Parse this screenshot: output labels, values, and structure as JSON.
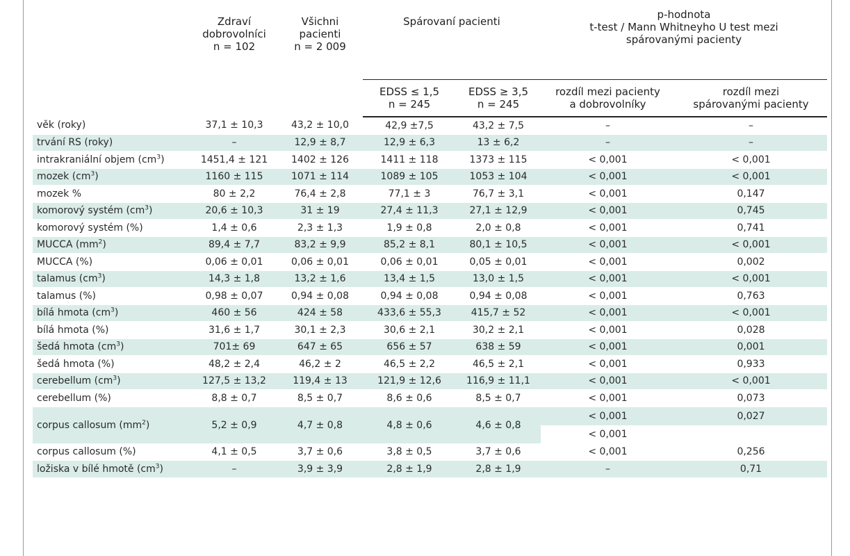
{
  "header": {
    "col_healthy": [
      "Zdraví",
      "dobrovolníci",
      "n = 102"
    ],
    "col_all": [
      "Všichni",
      "pacienti",
      "n = 2 009"
    ],
    "col_paired": "Spárovaní pacienti",
    "col_pvalue": [
      "p-hodnota",
      "t-test / Mann Whitneyho U test mezi",
      "spárovanými pacienty"
    ],
    "sub_edss_low": [
      "EDSS ≤ 1,5",
      "n = 245"
    ],
    "sub_edss_high": [
      "EDSS ≥ 3,5",
      "n = 245"
    ],
    "sub_diff_pat_vol": [
      "rozdíl mezi pacienty",
      "a dobrovolníky"
    ],
    "sub_diff_paired": [
      "rozdíl mezi",
      "spárovanými pacienty"
    ]
  },
  "rows": [
    {
      "label": "věk (roky)",
      "sup": "",
      "healthy": "37,1 ± 10,3",
      "all": "43,2 ± 10,0",
      "low": "42,9 ±7,5",
      "high": "43,2 ± 7,5",
      "p1": "–",
      "p2": "–"
    },
    {
      "label": "trvání RS (roky)",
      "sup": "",
      "healthy": "–",
      "all": "12,9 ± 8,7",
      "low": "12,9 ± 6,3",
      "high": "13 ± 6,2",
      "p1": "–",
      "p2": "–"
    },
    {
      "label": "intrakraniální objem (cm",
      "sup": "3",
      "tail": ")",
      "healthy": "1451,4 ± 121",
      "all": "1402 ± 126",
      "low": "1411 ± 118",
      "high": "1373 ± 115",
      "p1": "< 0,001",
      "p2": "< 0,001"
    },
    {
      "label": "mozek (cm",
      "sup": "3",
      "tail": ")",
      "healthy": "1160 ± 115",
      "all": "1071 ± 114",
      "low": "1089 ± 105",
      "high": "1053 ± 104",
      "p1": "< 0,001",
      "p2": "< 0,001"
    },
    {
      "label": "mozek %",
      "sup": "",
      "healthy": "80 ± 2,2",
      "all": "76,4 ± 2,8",
      "low": "77,1 ± 3",
      "high": "76,7 ± 3,1",
      "p1": "< 0,001",
      "p2": "0,147"
    },
    {
      "label": "komorový systém (cm",
      "sup": "3",
      "tail": ")",
      "healthy": "20,6 ± 10,3",
      "all": "31 ± 19",
      "low": "27,4 ± 11,3",
      "high": "27,1 ± 12,9",
      "p1": "< 0,001",
      "p2": "0,745"
    },
    {
      "label": "komorový systém (%)",
      "sup": "",
      "healthy": "1,4 ± 0,6",
      "all": "2,3 ± 1,3",
      "low": "1,9 ± 0,8",
      "high": "2,0 ± 0,8",
      "p1": "< 0,001",
      "p2": "0,741"
    },
    {
      "label": "MUCCA (mm",
      "sup": "2",
      "tail": ")",
      "healthy": "89,4 ± 7,7",
      "all": "83,2 ± 9,9",
      "low": "85,2 ± 8,1",
      "high": "80,1 ± 10,5",
      "p1": "< 0,001",
      "p2": "< 0,001"
    },
    {
      "label": "MUCCA (%)",
      "sup": "",
      "healthy": "0,06 ± 0,01",
      "all": "0,06 ± 0,01",
      "low": "0,06 ± 0,01",
      "high": "0,05 ± 0,01",
      "p1": "< 0,001",
      "p2": "0,002"
    },
    {
      "label": "talamus (cm",
      "sup": "3",
      "tail": ")",
      "healthy": "14,3 ± 1,8",
      "all": "13,2 ± 1,6",
      "low": "13,4 ± 1,5",
      "high": "13,0 ± 1,5",
      "p1": "< 0,001",
      "p2": "< 0,001"
    },
    {
      "label": "talamus (%)",
      "sup": "",
      "healthy": "0,98 ± 0,07",
      "all": "0,94 ± 0,08",
      "low": "0,94 ± 0,08",
      "high": "0,94 ± 0,08",
      "p1": "< 0,001",
      "p2": "0,763"
    },
    {
      "label": "bílá hmota (cm",
      "sup": "3",
      "tail": ")",
      "healthy": "460 ± 56",
      "all": "424 ± 58",
      "low": "433,6 ± 55,3",
      "high": "415,7 ± 52",
      "p1": "< 0,001",
      "p2": "< 0,001"
    },
    {
      "label": "bílá hmota (%)",
      "sup": "",
      "healthy": "31,6 ± 1,7",
      "all": "30,1 ± 2,3",
      "low": "30,6 ± 2,1",
      "high": "30,2 ± 2,1",
      "p1": "< 0,001",
      "p2": "0,028"
    },
    {
      "label": "šedá hmota (cm",
      "sup": "3",
      "tail": ")",
      "healthy": "701± 69",
      "all": "647 ± 65",
      "low": "656 ± 57",
      "high": "638 ± 59",
      "p1": "< 0,001",
      "p2": "0,001"
    },
    {
      "label": "šedá hmota (%)",
      "sup": "",
      "healthy": "48,2 ± 2,4",
      "all": "46,2 ± 2",
      "low": "46,5 ± 2,2",
      "high": "46,5 ± 2,1",
      "p1": "< 0,001",
      "p2": "0,933"
    },
    {
      "label": "cerebellum (cm",
      "sup": "3",
      "tail": ")",
      "healthy": "127,5 ± 13,2",
      "all": "119,4 ± 13",
      "low": "121,9 ± 12,6",
      "high": "116,9 ± 11,1",
      "p1": "< 0,001",
      "p2": "< 0,001"
    },
    {
      "label": "cerebellum (%)",
      "sup": "",
      "healthy": "8,8 ± 0,7",
      "all": "8,5 ± 0,7",
      "low": "8,6 ± 0,6",
      "high": "8,5 ± 0,7",
      "p1": "< 0,001",
      "p2": "0,073"
    },
    {
      "label": "corpus callosum (mm",
      "sup": "2",
      "tail": ")",
      "healthy": "5,2 ± 0,9",
      "all": "4,7 ± 0,8",
      "low": "4,8 ± 0,6",
      "high": "4,6 ± 0,8",
      "p1": "< 0,001",
      "p1b": "< 0,001",
      "p2": "0,027",
      "p2b": ""
    },
    {
      "label": "corpus callosum (%)",
      "sup": "",
      "healthy": "4,1 ± 0,5",
      "all": "3,7 ± 0,6",
      "low": "3,8 ± 0,5",
      "high": "3,7 ± 0,6",
      "p1": "< 0,001",
      "p2": "0,256"
    },
    {
      "label": "ložiska v bílé hmotě (cm",
      "sup": "3",
      "tail": ")",
      "healthy": "–",
      "all": "3,9 ± 3,9",
      "low": "2,8 ± 1,9",
      "high": "2,8 ± 1,9",
      "p1": "–",
      "p2": "0,71"
    }
  ],
  "colors": {
    "shade": "#d9ece8",
    "text": "#2a2a2a",
    "rule": "#222222"
  }
}
